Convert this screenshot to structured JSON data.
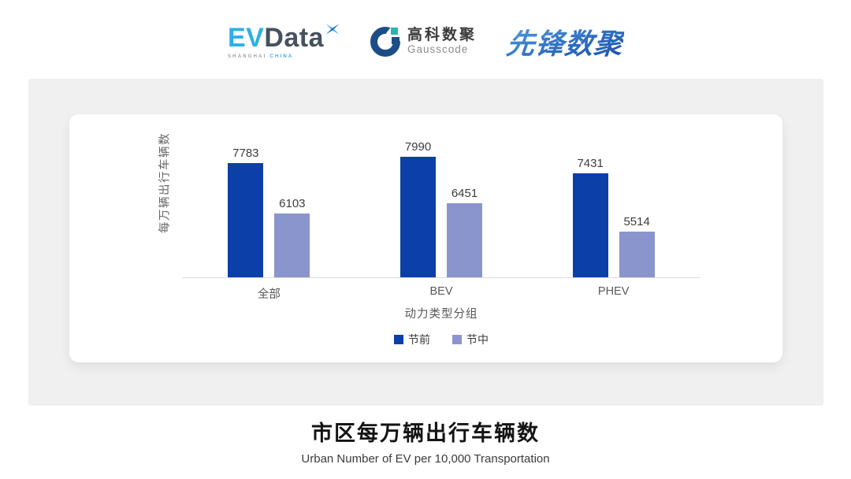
{
  "header": {
    "evdata": {
      "ev": "EV",
      "data": "Data",
      "sub_left": "SHANGHAI",
      "sub_right": "CHINA"
    },
    "gausscode": {
      "cn": "高科数聚",
      "en": "Gausscode"
    },
    "pioneer": {
      "text": "先锋数聚"
    }
  },
  "chart_data": {
    "type": "bar",
    "title": "市区每万辆出行车辆数",
    "subtitle": "Urban Number of EV per 10,000 Transportation",
    "categories": [
      "全部",
      "BEV",
      "PHEV"
    ],
    "series": [
      {
        "name": "节前",
        "color": "#0c3fa8",
        "values": [
          7783,
          7990,
          7431
        ]
      },
      {
        "name": "节中",
        "color": "#8a95cd",
        "values": [
          6103,
          6451,
          5514
        ]
      }
    ],
    "xlabel": "动力类型分组",
    "ylabel": "每万辆出行车辆数",
    "ylim": [
      4000,
      9200
    ],
    "value_labels": true,
    "legend_position": "bottom",
    "grid": false,
    "axis_color": "#dcdcdc"
  },
  "colors": {
    "panel_bg": "#f0f0f1",
    "card_bg": "#ffffff",
    "series_pre": "#0c3fa8",
    "series_mid": "#8a95cd",
    "evdata_blue": "#2cb0e5",
    "evdata_slate": "#44525f",
    "gauss_blue": "#1d4d86",
    "gauss_teal": "#28b5b0",
    "pioneer_blue": "#2a6bc0"
  }
}
